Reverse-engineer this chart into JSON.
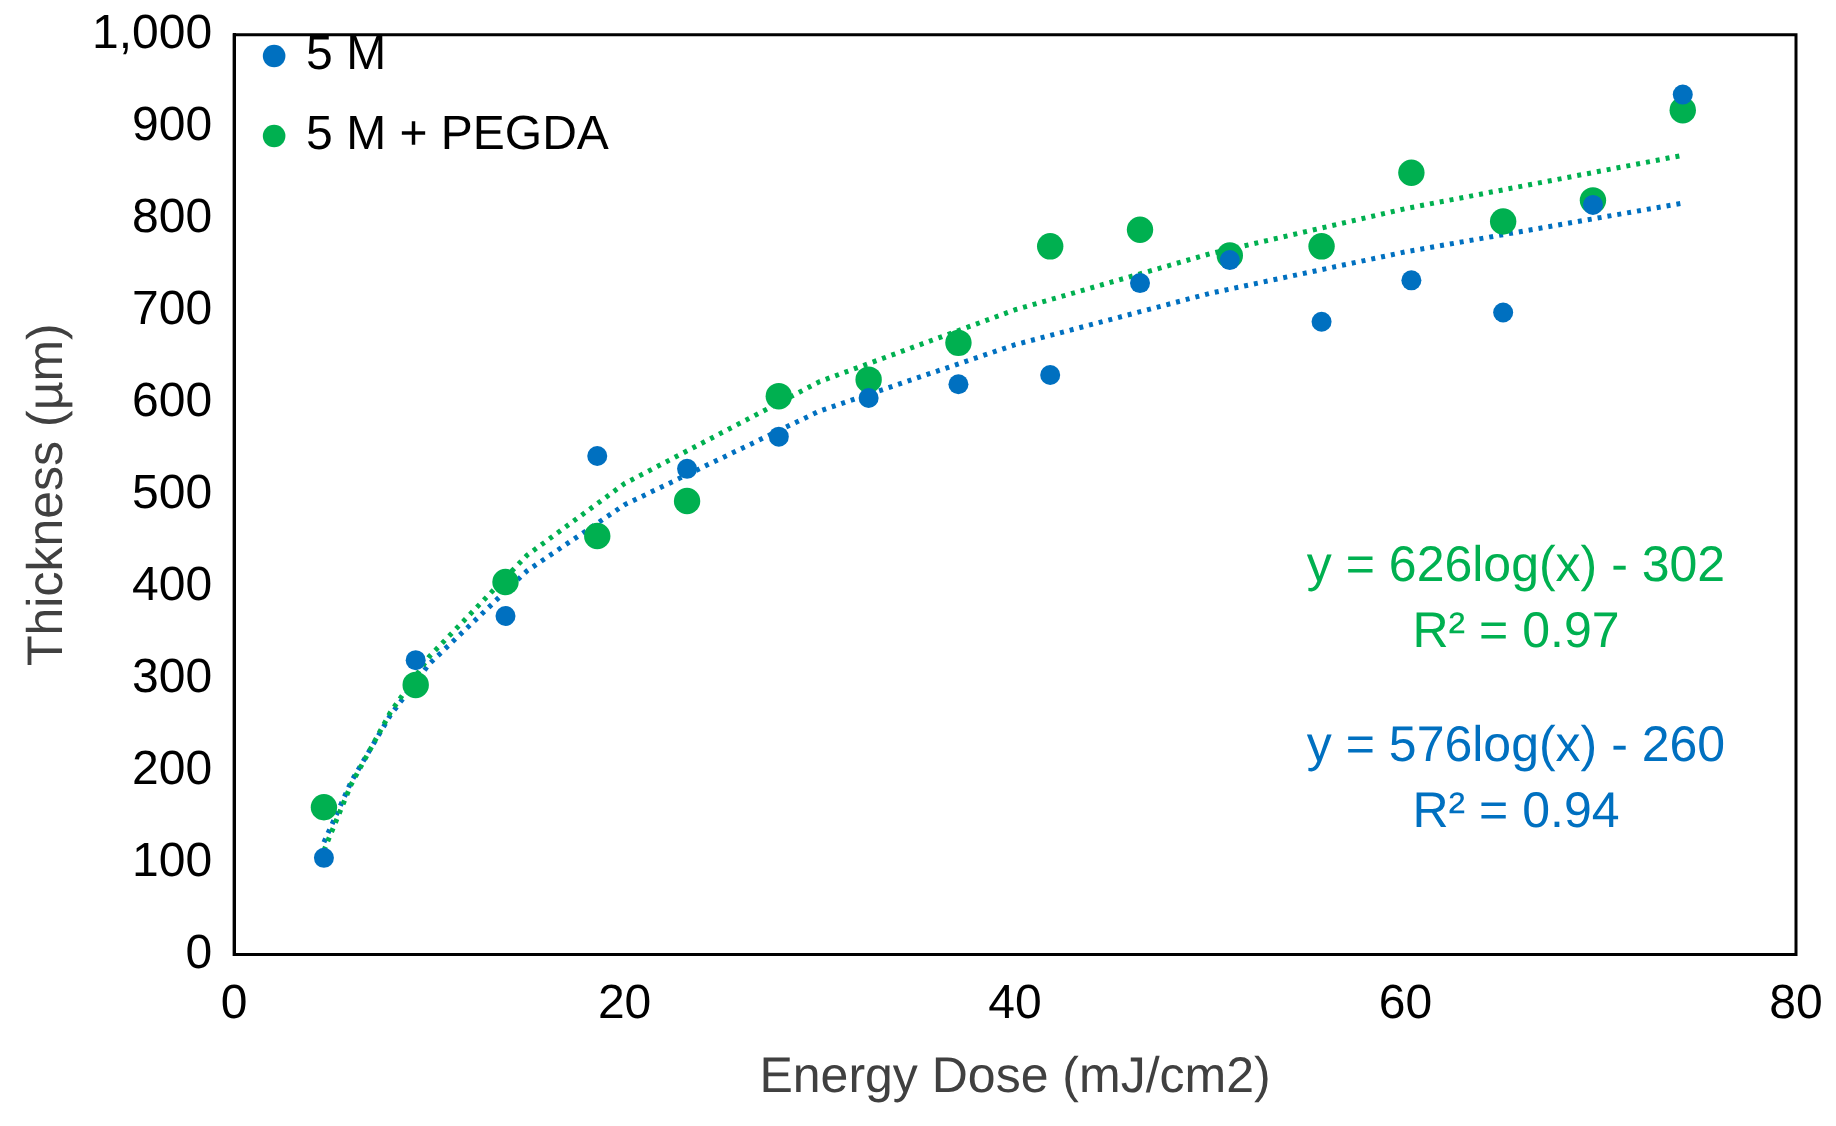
{
  "chart_data": {
    "type": "scatter",
    "xlabel": "Energy Dose (mJ/cm2)",
    "ylabel": "Thickness (µm)",
    "xlim": [
      0,
      80
    ],
    "xticks": [
      0,
      20,
      40,
      60,
      80
    ],
    "ylim": [
      0,
      1000
    ],
    "yticks": [
      0,
      100,
      200,
      300,
      400,
      500,
      600,
      700,
      800,
      900,
      {
        "value": 1000,
        "label": "1,000"
      }
    ],
    "grid": false,
    "legend": "top left",
    "marker": "circle",
    "series": [
      {
        "name": "5 M",
        "color": "#0070c0",
        "x": [
          4.6,
          9.3,
          13.9,
          18.6,
          23.2,
          27.9,
          32.5,
          37.1,
          41.8,
          46.4,
          51.0,
          55.7,
          60.3,
          65.0,
          69.6,
          74.2
        ],
        "values": [
          105,
          320,
          368,
          542,
          528,
          563,
          605,
          620,
          630,
          730,
          755,
          688,
          733,
          698,
          815,
          935
        ]
      },
      {
        "name": "5 M + PEGDA",
        "color": "#00b050",
        "x": [
          4.6,
          9.3,
          13.9,
          18.6,
          23.2,
          27.9,
          32.5,
          37.1,
          41.8,
          46.4,
          51.0,
          55.7,
          60.3,
          65.0,
          69.6,
          74.2
        ],
        "values": [
          160,
          293,
          405,
          455,
          493,
          607,
          625,
          665,
          770,
          788,
          760,
          770,
          850,
          797,
          820,
          918
        ]
      },
      {
        "type": "line",
        "line_style": "dotted",
        "marker": "none",
        "color": "#00b050",
        "x": [
          4.6,
          6,
          8,
          10,
          15,
          20,
          30,
          40,
          50,
          60,
          74.2
        ],
        "values": [
          113,
          185,
          263,
          324,
          434,
          512,
          623,
          701,
          762,
          811,
          869
        ]
      },
      {
        "type": "line",
        "line_style": "dotted",
        "marker": "none",
        "color": "#0070c0",
        "x": [
          4.6,
          6,
          8,
          10,
          15,
          20,
          30,
          40,
          50,
          60,
          74.2
        ],
        "values": [
          122,
          188,
          260,
          316,
          417,
          489,
          591,
          663,
          719,
          764,
          817
        ]
      }
    ],
    "annotations": [
      "y = 626log(x) - 302",
      "R² = 0.97",
      "y = 576log(x) - 260",
      "R² = 0.94"
    ]
  }
}
